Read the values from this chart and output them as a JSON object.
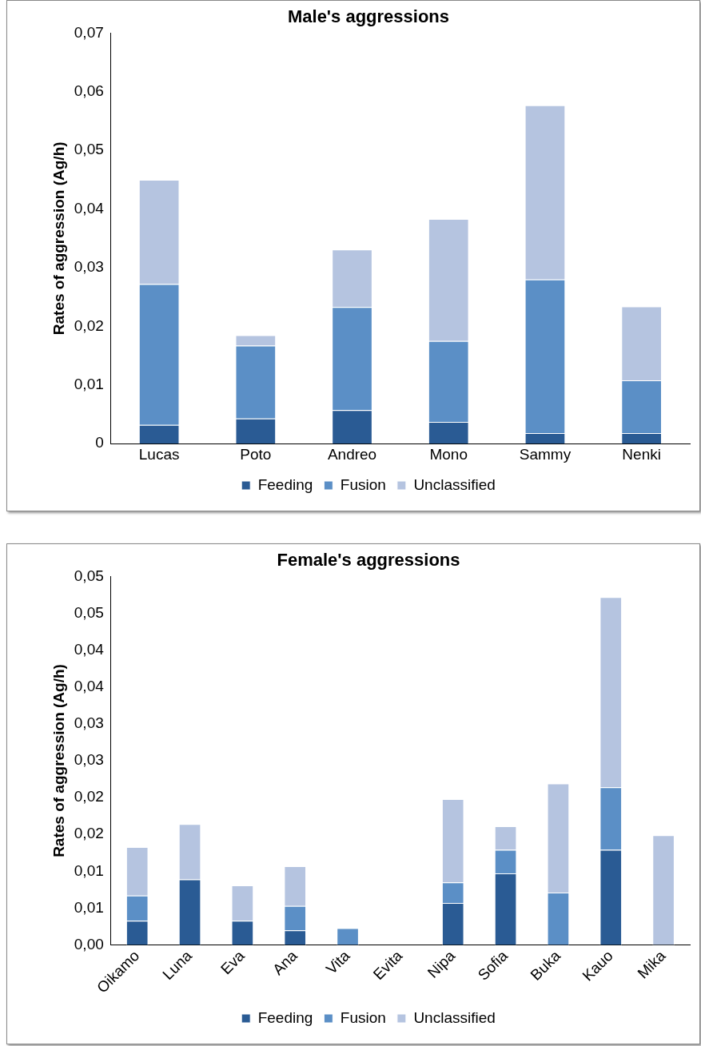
{
  "chart_data": [
    {
      "type": "bar",
      "stacked": true,
      "title": "Male's aggressions",
      "ylabel": "Rates of aggression (Ag/h)",
      "legend": "bottom",
      "categories": [
        "Lucas",
        "Poto",
        "Andreo",
        "Mono",
        "Sammy",
        "Nenki"
      ],
      "series": [
        {
          "name": "Feeding",
          "color": "#2a5b94",
          "values": [
            0.0032,
            0.0043,
            0.0057,
            0.0037,
            0.0018,
            0.0018
          ]
        },
        {
          "name": "Fusion",
          "color": "#5b8fc6",
          "values": [
            0.024,
            0.0124,
            0.0176,
            0.0138,
            0.0262,
            0.009
          ]
        },
        {
          "name": "Unclassified",
          "color": "#b5c4e0",
          "values": [
            0.0178,
            0.0018,
            0.0098,
            0.0208,
            0.0297,
            0.0126
          ]
        }
      ],
      "ylim": [
        0,
        0.07
      ],
      "yticks": [
        0,
        {
          "value": 0.01,
          "label": "0,01"
        },
        {
          "value": 0.02,
          "label": "0,02"
        },
        {
          "value": 0.03,
          "label": "0,03"
        },
        {
          "value": 0.04,
          "label": "0,04"
        },
        {
          "value": 0.05,
          "label": "0,05"
        },
        {
          "value": 0.06,
          "label": "0,06"
        },
        {
          "value": 0.07,
          "label": "0,07"
        }
      ]
    },
    {
      "type": "bar",
      "stacked": true,
      "title": "Female's aggressions",
      "ylabel": "Rates of aggression (Ag/h)",
      "legend": "bottom",
      "categories": [
        "Oikamo",
        "Luna",
        "Eva",
        "Ana",
        "Vita",
        "Evita",
        "Nipa",
        "Sofia",
        "Buka",
        "Kauo",
        "Mika"
      ],
      "series": [
        {
          "name": "Feeding",
          "color": "#2a5b94",
          "values": [
            0.0033,
            0.0089,
            0.0033,
            0.002,
            0,
            0,
            0.0057,
            0.0097,
            0,
            0.0129,
            0
          ]
        },
        {
          "name": "Fusion",
          "color": "#5b8fc6",
          "values": [
            0.0034,
            0,
            0,
            0.0033,
            0.0023,
            0,
            0.0028,
            0.0032,
            0.0071,
            0.0085,
            0
          ]
        },
        {
          "name": "Unclassified",
          "color": "#b5c4e0",
          "values": [
            0.0066,
            0.0075,
            0.0048,
            0.0054,
            0,
            0,
            0.0113,
            0.0032,
            0.0148,
            0.0258,
            0.0149
          ]
        }
      ],
      "ylim": [
        0,
        0.05
      ],
      "yticks": [
        {
          "value": 0,
          "label": "0,00"
        },
        {
          "value": 0.005,
          "label": "0,01"
        },
        {
          "value": 0.01,
          "label": "0,01"
        },
        {
          "value": 0.015,
          "label": "0,02"
        },
        {
          "value": 0.02,
          "label": "0,02"
        },
        {
          "value": 0.025,
          "label": "0,03"
        },
        {
          "value": 0.03,
          "label": "0,03"
        },
        {
          "value": 0.035,
          "label": "0,04"
        },
        {
          "value": 0.04,
          "label": "0,04"
        },
        {
          "value": 0.045,
          "label": "0,05"
        },
        {
          "value": 0.05,
          "label": "0,05"
        }
      ]
    }
  ]
}
